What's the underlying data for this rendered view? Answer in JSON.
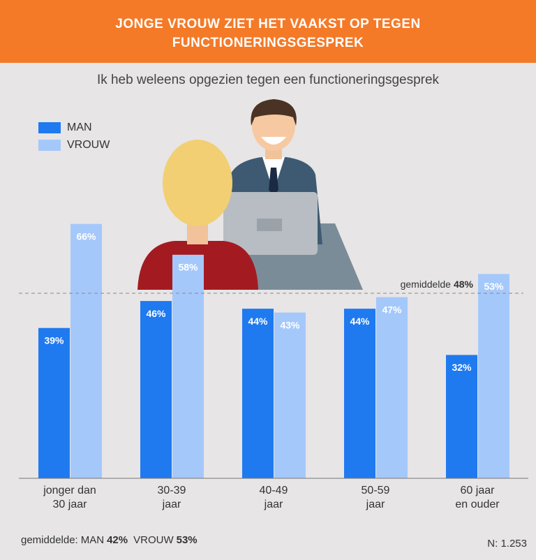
{
  "chart_data": {
    "type": "bar",
    "title": [
      "JONGE VROUW ZIET HET VAAKST OP TEGEN",
      "FUNCTIONERINGSGESPREK"
    ],
    "subtitle": "Ik heb weleens opgezien tegen een functioneringsgesprek",
    "categories": [
      [
        "jonger dan",
        "30 jaar"
      ],
      [
        "30-39",
        "jaar"
      ],
      [
        "40-49",
        "jaar"
      ],
      [
        "50-59",
        "jaar"
      ],
      [
        "60 jaar",
        "en ouder"
      ]
    ],
    "series": [
      {
        "name": "MAN",
        "color": "#1f7af0",
        "values": [
          39,
          46,
          44,
          44,
          32
        ],
        "value_labels": [
          "39%",
          "46%",
          "44%",
          "44%",
          "32%"
        ],
        "average": 42,
        "average_label": "42%"
      },
      {
        "name": "VROUW",
        "color": "#a5c8fb",
        "values": [
          66,
          58,
          43,
          47,
          53
        ],
        "value_labels": [
          "66%",
          "58%",
          "43%",
          "47%",
          "53%"
        ],
        "average": 53,
        "average_label": "53%"
      }
    ],
    "ylim": [
      0,
      100
    ],
    "reference_line": {
      "label": "gemiddelde",
      "value": 48,
      "value_label": "48%"
    },
    "footer_label": "gemiddelde:",
    "sample_size": "N: 1.253"
  }
}
